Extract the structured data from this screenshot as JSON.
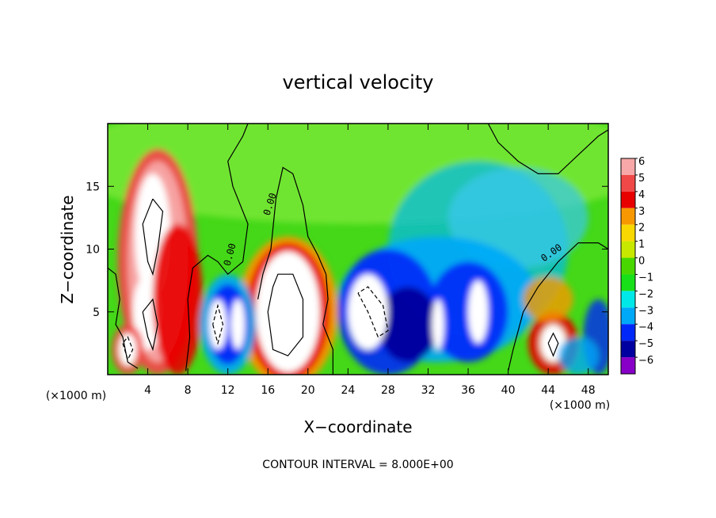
{
  "chart_data": {
    "type": "heatmap",
    "title": "vertical velocity",
    "xlabel": "X−coordinate",
    "ylabel": "Z−coordinate",
    "x_unit_label": "(×1000 m)",
    "x_range": [
      0,
      50
    ],
    "y_range": [
      0,
      20
    ],
    "x_ticks": [
      4,
      8,
      12,
      16,
      20,
      24,
      28,
      32,
      36,
      40,
      44,
      48
    ],
    "y_ticks": [
      5,
      10,
      15
    ],
    "footer": "CONTOUR INTERVAL = 8.000E+00",
    "zero_contour_label": "0.00",
    "colorbar": {
      "levels": [
        6,
        5,
        4,
        3,
        2,
        1,
        0,
        -1,
        -2,
        -3,
        -4,
        -5,
        -6
      ],
      "labels": [
        "6",
        "5",
        "4",
        "3",
        "2",
        "1",
        "0",
        "−1",
        "−2",
        "−3",
        "−4",
        "−5",
        "−6"
      ],
      "colors": [
        "#f8a8a8",
        "#f04848",
        "#e80000",
        "#f89800",
        "#f8d800",
        "#c8e800",
        "#48d800",
        "#18e018",
        "#00e8e8",
        "#00a8f8",
        "#0028f8",
        "#0000a0",
        "#8800c8"
      ]
    },
    "features": [
      {
        "type": "updraft",
        "x": 4.5,
        "z": 11
      },
      {
        "type": "updraft",
        "x": 18,
        "z": 5
      },
      {
        "type": "updraft",
        "x": 2,
        "z": 2
      },
      {
        "type": "updraft",
        "x": 44.5,
        "z": 2.5
      },
      {
        "type": "downdraft",
        "x": 12,
        "z": 5
      },
      {
        "type": "downdraft",
        "x": 26,
        "z": 5
      },
      {
        "type": "downdraft",
        "x": 37,
        "z": 5
      }
    ]
  }
}
